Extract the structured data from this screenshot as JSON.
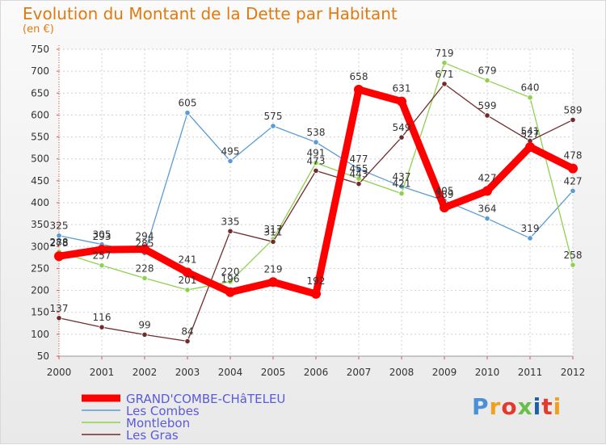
{
  "chart_data": {
    "type": "line",
    "title": "Evolution du Montant de la Dette par Habitant",
    "subtitle": "(en €)",
    "x": [
      "2000",
      "2001",
      "2002",
      "2003",
      "2004",
      "2005",
      "2006",
      "2007",
      "2008",
      "2009",
      "2010",
      "2011",
      "2012"
    ],
    "ylim": [
      50,
      750
    ],
    "yticks": [
      50,
      100,
      150,
      200,
      250,
      300,
      350,
      400,
      450,
      500,
      550,
      600,
      650,
      700,
      750
    ],
    "grid": true,
    "legend_position": "bottom-left",
    "series": [
      {
        "name": "GRAND'COMBE-CHâTELEU",
        "color": "#ff0000",
        "values": [
          278,
          293,
          294,
          241,
          196,
          219,
          192,
          658,
          631,
          389,
          427,
          527,
          478
        ]
      },
      {
        "name": "Les Combes",
        "color": "#5b9bd5",
        "values": [
          325,
          305,
          285,
          605,
          495,
          575,
          538,
          477,
          437,
          405,
          364,
          319,
          427
        ]
      },
      {
        "name": "Montlebon",
        "color": "#8fd14f",
        "values": [
          288,
          257,
          228,
          201,
          220,
          317,
          491,
          455,
          421,
          719,
          679,
          640,
          258
        ]
      },
      {
        "name": "Les Gras",
        "color": "#722b2b",
        "values": [
          137,
          116,
          99,
          84,
          335,
          311,
          473,
          443,
          549,
          671,
          599,
          541,
          589
        ]
      }
    ]
  },
  "logo": {
    "text": "Proxiti",
    "colors": [
      "#4a90d9",
      "#f0a020",
      "#e23b2e",
      "#6abf4b",
      "#1f5fa8",
      "#e23b2e",
      "#f0a020"
    ]
  }
}
